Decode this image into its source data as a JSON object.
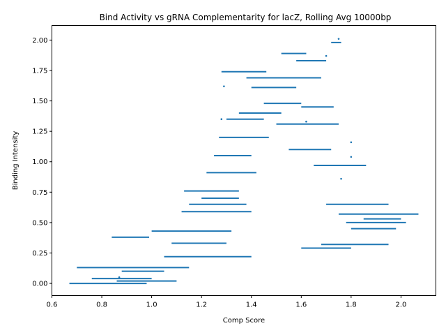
{
  "chart_data": {
    "type": "scatter",
    "title": "Bind Activity vs gRNA Complementarity for lacZ, Rolling Avg 10000bp",
    "xlabel": "Comp Score",
    "ylabel": "Binding Intensity",
    "xlim": [
      0.6,
      2.14
    ],
    "ylim": [
      -0.1,
      2.12
    ],
    "xticks": [
      "0.6",
      "0.8",
      "1.0",
      "1.2",
      "1.4",
      "1.6",
      "1.8",
      "2.0"
    ],
    "yticks": [
      "0.00",
      "0.25",
      "0.50",
      "0.75",
      "1.00",
      "1.25",
      "1.50",
      "1.75",
      "2.00"
    ],
    "grid": false,
    "legend": "none",
    "color": "#1f77b4",
    "segments": [
      {
        "x0": 0.67,
        "x1": 0.98,
        "y": 0.0
      },
      {
        "x0": 0.7,
        "x1": 1.15,
        "y": 0.13
      },
      {
        "x0": 0.76,
        "x1": 1.0,
        "y": 0.04
      },
      {
        "x0": 0.84,
        "x1": 0.99,
        "y": 0.38
      },
      {
        "x0": 0.86,
        "x1": 1.1,
        "y": 0.02
      },
      {
        "x0": 0.88,
        "x1": 1.05,
        "y": 0.1
      },
      {
        "x0": 1.0,
        "x1": 1.32,
        "y": 0.43
      },
      {
        "x0": 1.05,
        "x1": 1.4,
        "y": 0.22
      },
      {
        "x0": 1.08,
        "x1": 1.3,
        "y": 0.33
      },
      {
        "x0": 1.12,
        "x1": 1.4,
        "y": 0.59
      },
      {
        "x0": 1.13,
        "x1": 1.35,
        "y": 0.76
      },
      {
        "x0": 1.15,
        "x1": 1.38,
        "y": 0.65
      },
      {
        "x0": 1.2,
        "x1": 1.35,
        "y": 0.7
      },
      {
        "x0": 1.22,
        "x1": 1.42,
        "y": 0.91
      },
      {
        "x0": 1.25,
        "x1": 1.4,
        "y": 1.05
      },
      {
        "x0": 1.27,
        "x1": 1.47,
        "y": 1.2
      },
      {
        "x0": 1.28,
        "x1": 1.46,
        "y": 1.74
      },
      {
        "x0": 1.3,
        "x1": 1.45,
        "y": 1.35
      },
      {
        "x0": 1.35,
        "x1": 1.52,
        "y": 1.4
      },
      {
        "x0": 1.38,
        "x1": 1.68,
        "y": 1.69
      },
      {
        "x0": 1.4,
        "x1": 1.58,
        "y": 1.61
      },
      {
        "x0": 1.45,
        "x1": 1.6,
        "y": 1.48
      },
      {
        "x0": 1.5,
        "x1": 1.75,
        "y": 1.31
      },
      {
        "x0": 1.52,
        "x1": 1.62,
        "y": 1.89
      },
      {
        "x0": 1.55,
        "x1": 1.72,
        "y": 1.1
      },
      {
        "x0": 1.58,
        "x1": 1.7,
        "y": 1.83
      },
      {
        "x0": 1.6,
        "x1": 1.73,
        "y": 1.45
      },
      {
        "x0": 1.6,
        "x1": 1.8,
        "y": 0.29
      },
      {
        "x0": 1.65,
        "x1": 1.86,
        "y": 0.97
      },
      {
        "x0": 1.68,
        "x1": 1.95,
        "y": 0.32
      },
      {
        "x0": 1.7,
        "x1": 1.95,
        "y": 0.65
      },
      {
        "x0": 1.72,
        "x1": 1.76,
        "y": 1.98
      },
      {
        "x0": 1.75,
        "x1": 2.07,
        "y": 0.57
      },
      {
        "x0": 1.78,
        "x1": 2.02,
        "y": 0.5
      },
      {
        "x0": 1.8,
        "x1": 1.98,
        "y": 0.45
      },
      {
        "x0": 1.85,
        "x1": 2.0,
        "y": 0.53
      }
    ],
    "points": [
      {
        "x": 1.75,
        "y": 2.01
      },
      {
        "x": 1.7,
        "y": 1.87
      },
      {
        "x": 1.29,
        "y": 1.62
      },
      {
        "x": 1.62,
        "y": 1.33
      },
      {
        "x": 1.8,
        "y": 1.16
      },
      {
        "x": 1.8,
        "y": 1.04
      },
      {
        "x": 1.76,
        "y": 0.86
      },
      {
        "x": 0.87,
        "y": 0.05
      },
      {
        "x": 1.28,
        "y": 1.35
      }
    ]
  }
}
